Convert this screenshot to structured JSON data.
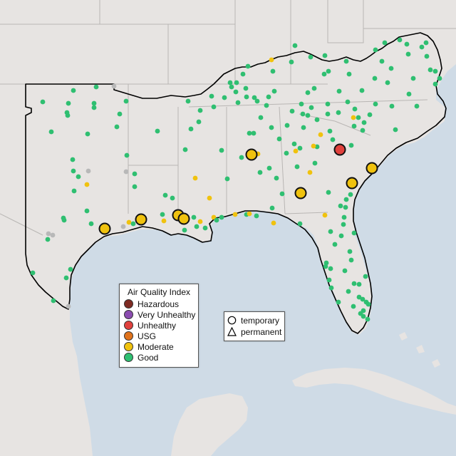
{
  "legend": {
    "title": "Air Quality Index",
    "categories": [
      {
        "label": "Hazardous",
        "color": "#7e2a22"
      },
      {
        "label": "Very Unhealthy",
        "color": "#8b4cb0"
      },
      {
        "label": "Unhealthy",
        "color": "#e0413d"
      },
      {
        "label": "USG",
        "color": "#e0731c"
      },
      {
        "label": "Moderate",
        "color": "#f0c20e"
      },
      {
        "label": "Good",
        "color": "#2fbf71"
      }
    ]
  },
  "site_type_legend": {
    "temporary_label": "temporary",
    "permanent_label": "permanent"
  },
  "colors": {
    "water": "#cfdbe6",
    "land": "#e7e4e2",
    "state_border": "#b9b6b4",
    "region_outline": "#000000",
    "no_data": "#b8b8b8"
  }
}
